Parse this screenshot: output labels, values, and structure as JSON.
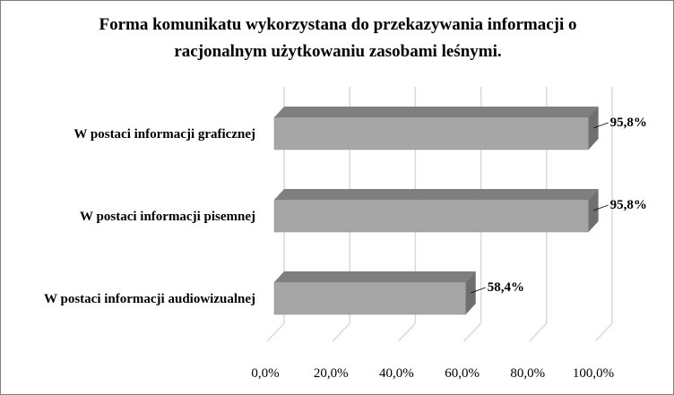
{
  "chart_data": {
    "type": "bar",
    "orientation": "horizontal",
    "style": "3d",
    "title_lines": [
      "Forma komunikatu wykorzystana do przekazywania informacji o",
      "racjonalnym użytkowaniu zasobami leśnymi."
    ],
    "categories": [
      "W postaci informacji graficznej",
      "W postaci informacji pisemnej",
      "W postaci informacji audiowizualnej"
    ],
    "values": [
      95.8,
      95.8,
      58.4
    ],
    "data_labels": [
      "95,8%",
      "95,8%",
      "58,4%"
    ],
    "xlim": [
      0,
      100
    ],
    "ticks": [
      0,
      20,
      40,
      60,
      80,
      100
    ],
    "tick_labels": [
      "0,0%",
      "20,0%",
      "40,0%",
      "60,0%",
      "80,0%",
      "100,0%"
    ],
    "grid": true,
    "legend": "none",
    "colors": {
      "bar_front": "#a6a6a6",
      "bar_top": "#7f7f7f",
      "bar_side": "#6f6f6f",
      "gridline": "#d9d9d9"
    }
  }
}
